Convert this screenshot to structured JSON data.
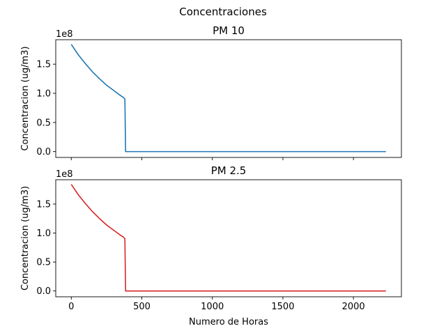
{
  "suptitle": "Concentraciones",
  "chart_data": [
    {
      "type": "line",
      "title": "PM 10",
      "xlabel": "",
      "ylabel": "Concentracion (ug/m3)",
      "offset_text": "1e8",
      "xlim": [
        -110,
        2340
      ],
      "ylim": [
        -0.1,
        1.92
      ],
      "xticks": [
        0,
        500,
        1000,
        1500,
        2000
      ],
      "xtick_labels_shown": false,
      "yticks": [
        0.0,
        0.5,
        1.0,
        1.5
      ],
      "ytick_labels": [
        "0.0",
        "0.5",
        "1.0",
        "1.5"
      ],
      "grid": false,
      "series": [
        {
          "color": "#1f77b4",
          "x": [
            0,
            50,
            100,
            150,
            200,
            250,
            300,
            350,
            370,
            380,
            385,
            2230
          ],
          "y": [
            1.84,
            1.66,
            1.51,
            1.37,
            1.25,
            1.14,
            1.05,
            0.96,
            0.93,
            0.9,
            0.0,
            0.0
          ]
        }
      ]
    },
    {
      "type": "line",
      "title": "PM 2.5",
      "xlabel": "Numero de Horas",
      "ylabel": "Concentracion (ug/m3)",
      "offset_text": "1e8",
      "xlim": [
        -110,
        2340
      ],
      "ylim": [
        -0.1,
        1.92
      ],
      "xticks": [
        0,
        500,
        1000,
        1500,
        2000
      ],
      "xtick_labels": [
        "0",
        "500",
        "1000",
        "1500",
        "2000"
      ],
      "xtick_labels_shown": true,
      "yticks": [
        0.0,
        0.5,
        1.0,
        1.5
      ],
      "ytick_labels": [
        "0.0",
        "0.5",
        "1.0",
        "1.5"
      ],
      "grid": false,
      "series": [
        {
          "color": "#d62728",
          "x": [
            0,
            50,
            100,
            150,
            200,
            250,
            300,
            350,
            370,
            380,
            385,
            2230
          ],
          "y": [
            1.84,
            1.66,
            1.51,
            1.37,
            1.25,
            1.14,
            1.05,
            0.96,
            0.93,
            0.9,
            0.0,
            0.0
          ]
        }
      ]
    }
  ]
}
